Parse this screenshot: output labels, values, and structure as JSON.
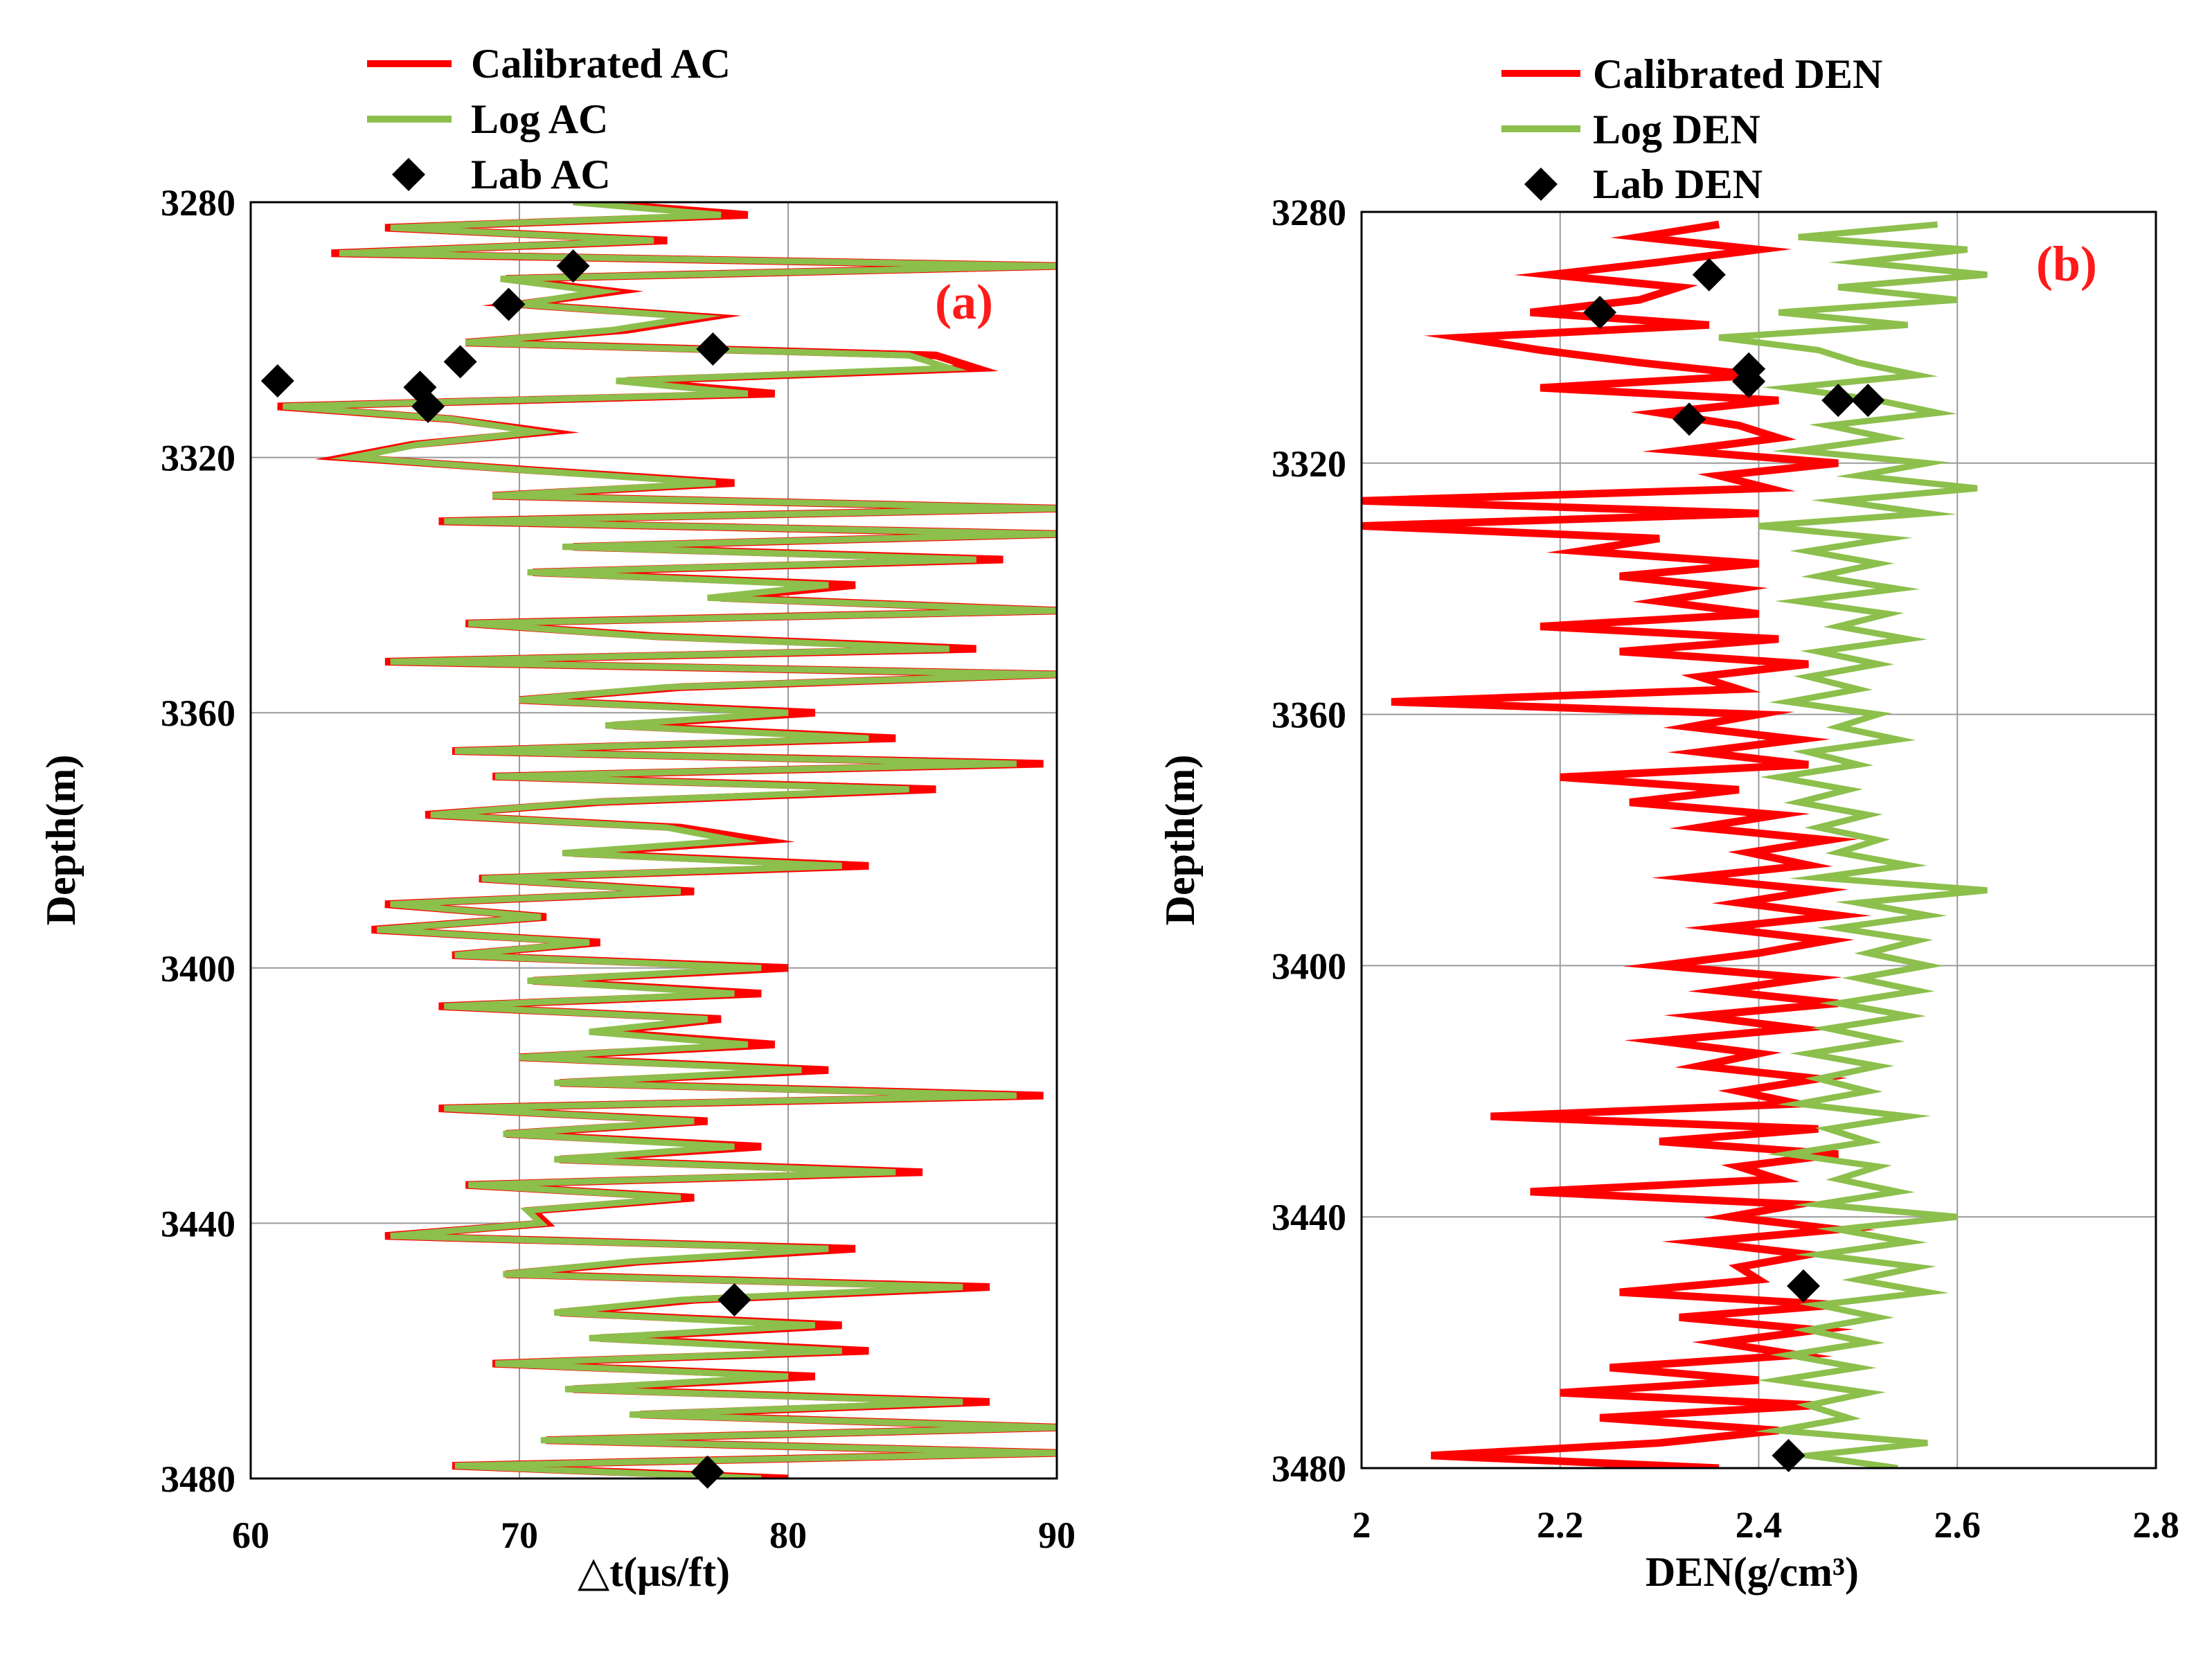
{
  "chart_data": [
    {
      "type": "line",
      "panel": "(a)",
      "xlabel": "△t(μs/ft)",
      "ylabel": "Depth(m)",
      "xlim": [
        60,
        90
      ],
      "ylim": [
        3280,
        3480
      ],
      "y_inverted": true,
      "xticks": [
        60,
        70,
        80,
        90
      ],
      "yticks": [
        3280,
        3320,
        3360,
        3400,
        3440,
        3480
      ],
      "grid": true,
      "legend_position": "top-left",
      "colors": {
        "calibrated": "#ff0000",
        "log": "#8cbf4c",
        "lab": "#000000"
      },
      "series": [
        {
          "name": "Calibrated AC",
          "style": "line",
          "depth": [
            3280,
            3282,
            3284,
            3286,
            3288,
            3290,
            3292,
            3294,
            3296,
            3298,
            3300,
            3302,
            3304,
            3306,
            3308,
            3310,
            3312,
            3314,
            3316,
            3318,
            3320,
            3322,
            3324,
            3326,
            3328,
            3330,
            3332,
            3334,
            3336,
            3338,
            3340,
            3342,
            3344,
            3346,
            3348,
            3350,
            3352,
            3354,
            3356,
            3358,
            3360,
            3362,
            3364,
            3366,
            3368,
            3370,
            3372,
            3374,
            3376,
            3378,
            3380,
            3382,
            3384,
            3386,
            3388,
            3390,
            3392,
            3394,
            3396,
            3398,
            3400,
            3402,
            3404,
            3406,
            3408,
            3410,
            3412,
            3414,
            3416,
            3418,
            3420,
            3422,
            3424,
            3426,
            3428,
            3430,
            3432,
            3434,
            3436,
            3438,
            3440,
            3442,
            3444,
            3446,
            3448,
            3450,
            3452,
            3454,
            3456,
            3458,
            3460,
            3462,
            3464,
            3466,
            3468,
            3470,
            3472,
            3474,
            3476,
            3478,
            3480
          ],
          "values": [
            72.5,
            78.5,
            65.0,
            75.5,
            63.0,
            90.0,
            69.5,
            73.5,
            70.0,
            77.0,
            74.0,
            68.0,
            85.5,
            87.0,
            74.0,
            79.5,
            61.0,
            67.5,
            71.0,
            66.0,
            63.5,
            70.5,
            78.0,
            69.0,
            90.0,
            67.0,
            90.0,
            72.0,
            88.0,
            70.5,
            82.5,
            77.5,
            90.0,
            68.0,
            75.0,
            87.0,
            65.0,
            90.0,
            76.0,
            70.0,
            81.0,
            73.5,
            84.0,
            67.5,
            89.5,
            69.0,
            85.5,
            73.0,
            66.5,
            76.0,
            79.0,
            72.0,
            83.0,
            68.5,
            76.5,
            65.0,
            71.0,
            64.5,
            73.0,
            67.5,
            80.0,
            70.5,
            79.0,
            67.0,
            77.5,
            73.0,
            79.5,
            70.0,
            81.5,
            71.5,
            89.5,
            67.0,
            77.0,
            69.5,
            79.0,
            71.5,
            85.0,
            68.0,
            76.5,
            70.5,
            71.0,
            65.0,
            82.5,
            74.5,
            69.5,
            87.5,
            76.5,
            71.5,
            82.0,
            73.0,
            83.0,
            69.0,
            81.0,
            72.0,
            87.5,
            74.5,
            90.0,
            71.0,
            90.0,
            67.5,
            80.0
          ]
        },
        {
          "name": "Log AC",
          "style": "line",
          "depth": [
            3280,
            3282,
            3284,
            3286,
            3288,
            3290,
            3292,
            3294,
            3296,
            3298,
            3300,
            3302,
            3304,
            3306,
            3308,
            3310,
            3312,
            3314,
            3316,
            3318,
            3320,
            3322,
            3324,
            3326,
            3328,
            3330,
            3332,
            3334,
            3336,
            3338,
            3340,
            3342,
            3344,
            3346,
            3348,
            3350,
            3352,
            3354,
            3356,
            3358,
            3360,
            3362,
            3364,
            3366,
            3368,
            3370,
            3372,
            3374,
            3376,
            3378,
            3380,
            3382,
            3384,
            3386,
            3388,
            3390,
            3392,
            3394,
            3396,
            3398,
            3400,
            3402,
            3404,
            3406,
            3408,
            3410,
            3412,
            3414,
            3416,
            3418,
            3420,
            3422,
            3424,
            3426,
            3428,
            3430,
            3432,
            3434,
            3436,
            3438,
            3440,
            3442,
            3444,
            3446,
            3448,
            3450,
            3452,
            3454,
            3456,
            3458,
            3460,
            3462,
            3464,
            3466,
            3468,
            3470,
            3472,
            3474,
            3476,
            3478,
            3480
          ],
          "values": [
            72.0,
            77.5,
            65.2,
            75.0,
            63.3,
            90.0,
            69.3,
            73.0,
            70.0,
            76.5,
            73.5,
            68.0,
            84.5,
            86.0,
            73.6,
            78.5,
            61.2,
            67.5,
            70.6,
            66.2,
            63.8,
            70.2,
            77.3,
            69.0,
            90.0,
            67.2,
            90.0,
            71.6,
            87.0,
            70.3,
            81.5,
            77.0,
            90.0,
            68.1,
            74.6,
            86.0,
            65.2,
            90.0,
            75.5,
            70.0,
            80.0,
            73.2,
            83.0,
            67.6,
            88.5,
            69.1,
            84.5,
            72.6,
            66.7,
            75.5,
            78.0,
            71.6,
            82.0,
            68.6,
            76.0,
            65.2,
            70.8,
            64.7,
            72.6,
            67.6,
            79.0,
            70.3,
            78.0,
            67.2,
            77.0,
            72.6,
            78.5,
            70.0,
            80.5,
            71.3,
            88.5,
            67.2,
            76.5,
            69.4,
            78.0,
            71.3,
            84.0,
            68.1,
            76.0,
            70.3,
            70.8,
            65.2,
            81.5,
            74.1,
            69.4,
            86.5,
            76.0,
            71.3,
            81.0,
            72.6,
            82.0,
            69.1,
            80.0,
            71.7,
            86.5,
            74.1,
            90.0,
            70.8,
            90.0,
            67.6,
            79.0
          ]
        },
        {
          "name": "Lab AC",
          "style": "marker",
          "points": [
            {
              "x": 72.0,
              "y": 3290
            },
            {
              "x": 69.6,
              "y": 3296
            },
            {
              "x": 77.2,
              "y": 3303
            },
            {
              "x": 67.8,
              "y": 3305
            },
            {
              "x": 61.0,
              "y": 3308
            },
            {
              "x": 66.3,
              "y": 3309
            },
            {
              "x": 66.6,
              "y": 3312
            },
            {
              "x": 78.0,
              "y": 3452
            },
            {
              "x": 77.0,
              "y": 3479
            }
          ]
        }
      ]
    },
    {
      "type": "line",
      "panel": "(b)",
      "xlabel": "DEN(g/cm³)",
      "ylabel": "Depth(m)",
      "xlim": [
        2.0,
        2.8
      ],
      "ylim": [
        3280,
        3480
      ],
      "y_inverted": true,
      "xticks": [
        2,
        2.2,
        2.4,
        2.6,
        2.8
      ],
      "yticks": [
        3280,
        3320,
        3360,
        3400,
        3440,
        3480
      ],
      "grid": true,
      "legend_position": "top-left",
      "colors": {
        "calibrated": "#ff0000",
        "log": "#8cbf4c",
        "lab": "#000000"
      },
      "series": [
        {
          "name": "Calibrated DEN",
          "style": "line",
          "depth": [
            3282,
            3284,
            3286,
            3288,
            3290,
            3292,
            3294,
            3296,
            3298,
            3300,
            3302,
            3304,
            3306,
            3308,
            3310,
            3312,
            3314,
            3316,
            3318,
            3320,
            3322,
            3324,
            3326,
            3328,
            3330,
            3332,
            3334,
            3336,
            3338,
            3340,
            3342,
            3344,
            3346,
            3348,
            3350,
            3352,
            3354,
            3356,
            3358,
            3360,
            3362,
            3364,
            3366,
            3368,
            3370,
            3372,
            3374,
            3376,
            3378,
            3380,
            3382,
            3384,
            3386,
            3388,
            3390,
            3392,
            3394,
            3396,
            3398,
            3400,
            3402,
            3404,
            3406,
            3408,
            3410,
            3412,
            3414,
            3416,
            3418,
            3420,
            3422,
            3424,
            3426,
            3428,
            3430,
            3432,
            3434,
            3436,
            3438,
            3440,
            3442,
            3444,
            3446,
            3448,
            3450,
            3452,
            3454,
            3456,
            3458,
            3460,
            3462,
            3464,
            3466,
            3468,
            3470,
            3472,
            3474,
            3476,
            3478,
            3480
          ],
          "values": [
            2.36,
            2.28,
            2.4,
            2.3,
            2.19,
            2.32,
            2.28,
            2.17,
            2.35,
            2.1,
            2.18,
            2.28,
            2.4,
            2.18,
            2.42,
            2.3,
            2.38,
            2.42,
            2.32,
            2.48,
            2.36,
            2.41,
            2.0,
            2.4,
            2.0,
            2.3,
            2.22,
            2.4,
            2.26,
            2.38,
            2.3,
            2.4,
            2.18,
            2.42,
            2.26,
            2.45,
            2.34,
            2.38,
            2.03,
            2.4,
            2.33,
            2.44,
            2.34,
            2.45,
            2.2,
            2.38,
            2.27,
            2.42,
            2.34,
            2.47,
            2.39,
            2.45,
            2.33,
            2.46,
            2.38,
            2.48,
            2.36,
            2.47,
            2.4,
            2.3,
            2.45,
            2.36,
            2.48,
            2.34,
            2.44,
            2.3,
            2.4,
            2.34,
            2.46,
            2.38,
            2.44,
            2.13,
            2.46,
            2.3,
            2.48,
            2.38,
            2.42,
            2.17,
            2.44,
            2.37,
            2.48,
            2.34,
            2.45,
            2.38,
            2.4,
            2.26,
            2.48,
            2.32,
            2.46,
            2.36,
            2.44,
            2.25,
            2.4,
            2.2,
            2.46,
            2.24,
            2.42,
            2.3,
            2.07,
            2.36
          ]
        },
        {
          "name": "Log DEN",
          "style": "line",
          "depth": [
            3282,
            3284,
            3286,
            3288,
            3290,
            3292,
            3294,
            3296,
            3298,
            3300,
            3302,
            3304,
            3306,
            3308,
            3310,
            3312,
            3314,
            3316,
            3318,
            3320,
            3322,
            3324,
            3326,
            3328,
            3330,
            3332,
            3334,
            3336,
            3338,
            3340,
            3342,
            3344,
            3346,
            3348,
            3350,
            3352,
            3354,
            3356,
            3358,
            3360,
            3362,
            3364,
            3366,
            3368,
            3370,
            3372,
            3374,
            3376,
            3378,
            3380,
            3382,
            3384,
            3386,
            3388,
            3390,
            3392,
            3394,
            3396,
            3398,
            3400,
            3402,
            3404,
            3406,
            3408,
            3410,
            3412,
            3414,
            3416,
            3418,
            3420,
            3422,
            3424,
            3426,
            3428,
            3430,
            3432,
            3434,
            3436,
            3438,
            3440,
            3442,
            3444,
            3446,
            3448,
            3450,
            3452,
            3454,
            3456,
            3458,
            3460,
            3462,
            3464,
            3466,
            3468,
            3470,
            3472,
            3474,
            3476,
            3478,
            3480
          ],
          "values": [
            2.58,
            2.44,
            2.61,
            2.5,
            2.63,
            2.48,
            2.6,
            2.42,
            2.55,
            2.36,
            2.46,
            2.5,
            2.56,
            2.43,
            2.52,
            2.58,
            2.47,
            2.53,
            2.44,
            2.57,
            2.5,
            2.62,
            2.48,
            2.57,
            2.4,
            2.53,
            2.45,
            2.52,
            2.46,
            2.54,
            2.44,
            2.53,
            2.48,
            2.55,
            2.46,
            2.52,
            2.45,
            2.5,
            2.43,
            2.52,
            2.48,
            2.54,
            2.45,
            2.5,
            2.42,
            2.49,
            2.44,
            2.51,
            2.46,
            2.52,
            2.48,
            2.55,
            2.46,
            2.63,
            2.5,
            2.57,
            2.48,
            2.56,
            2.51,
            2.57,
            2.5,
            2.56,
            2.48,
            2.55,
            2.47,
            2.53,
            2.45,
            2.52,
            2.46,
            2.51,
            2.44,
            2.55,
            2.47,
            2.51,
            2.43,
            2.52,
            2.48,
            2.54,
            2.46,
            2.6,
            2.48,
            2.55,
            2.46,
            2.56,
            2.5,
            2.57,
            2.46,
            2.52,
            2.45,
            2.51,
            2.43,
            2.5,
            2.42,
            2.51,
            2.45,
            2.49,
            2.42,
            2.57,
            2.45,
            2.54
          ]
        },
        {
          "name": "Lab DEN",
          "style": "marker",
          "points": [
            {
              "x": 2.35,
              "y": 3290
            },
            {
              "x": 2.24,
              "y": 3296
            },
            {
              "x": 2.39,
              "y": 3305
            },
            {
              "x": 2.39,
              "y": 3307
            },
            {
              "x": 2.48,
              "y": 3310
            },
            {
              "x": 2.51,
              "y": 3310
            },
            {
              "x": 2.33,
              "y": 3313
            },
            {
              "x": 2.445,
              "y": 3451
            },
            {
              "x": 2.43,
              "y": 3478
            }
          ]
        }
      ]
    }
  ]
}
